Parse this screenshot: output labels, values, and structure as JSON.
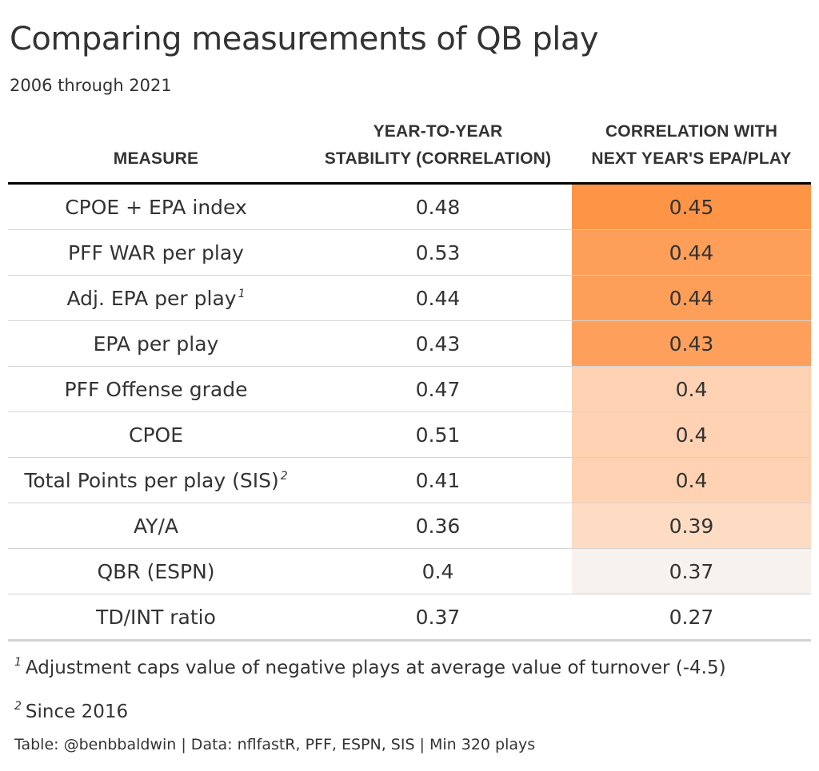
{
  "title": "Comparing measurements of QB play",
  "subtitle": "2006 through 2021",
  "columns": {
    "measure": "MEASURE",
    "stability_line1": "YEAR-TO-YEAR",
    "stability_line2": "STABILITY (CORRELATION)",
    "corr_line1": "CORRELATION WITH",
    "corr_line2": "NEXT YEAR'S EPA/PLAY"
  },
  "rows": [
    {
      "measure": "CPOE + EPA index",
      "note": "",
      "stability": "0.48",
      "corr": "0.45",
      "corr_bg": "#FE9446"
    },
    {
      "measure": "PFF WAR per play",
      "note": "",
      "stability": "0.53",
      "corr": "0.44",
      "corr_bg": "#FE9F59"
    },
    {
      "measure": "Adj. EPA per play",
      "note": "1",
      "stability": "0.44",
      "corr": "0.44",
      "corr_bg": "#FE9F59"
    },
    {
      "measure": "EPA per play",
      "note": "",
      "stability": "0.43",
      "corr": "0.43",
      "corr_bg": "#FEA05C"
    },
    {
      "measure": "PFF Offense grade",
      "note": "",
      "stability": "0.47",
      "corr": "0.4",
      "corr_bg": "#FED2B2"
    },
    {
      "measure": "CPOE",
      "note": "",
      "stability": "0.51",
      "corr": "0.4",
      "corr_bg": "#FED2B2"
    },
    {
      "measure": "Total Points per play (SIS)",
      "note": "2",
      "stability": "0.41",
      "corr": "0.4",
      "corr_bg": "#FED2B2"
    },
    {
      "measure": "AY/A",
      "note": "",
      "stability": "0.36",
      "corr": "0.39",
      "corr_bg": "#FEDCC4"
    },
    {
      "measure": "QBR (ESPN)",
      "note": "",
      "stability": "0.4",
      "corr": "0.37",
      "corr_bg": "#F7F2ED"
    },
    {
      "measure": "TD/INT ratio",
      "note": "",
      "stability": "0.37",
      "corr": "0.27",
      "corr_bg": "#FFFFFF"
    }
  ],
  "footnotes": [
    {
      "mark": "1",
      "text": "Adjustment caps value of negative plays at average value of turnover (-4.5)"
    },
    {
      "mark": "2",
      "text": "Since 2016"
    }
  ],
  "source": "Table: @benbbaldwin | Data: nflfastR, PFF, ESPN, SIS | Min 320 plays"
}
